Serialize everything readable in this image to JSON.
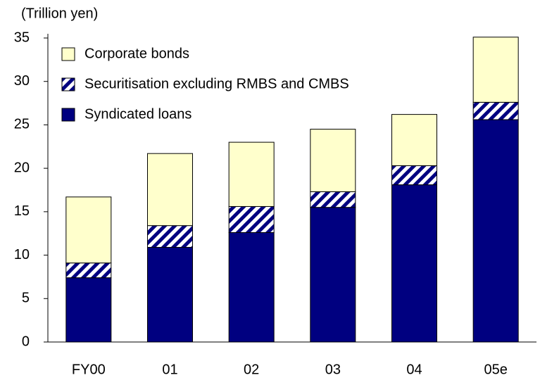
{
  "chart_data": {
    "type": "stacked_bar",
    "y_label": "(Trillion yen)",
    "categories": [
      "FY00",
      "01",
      "02",
      "03",
      "04",
      "05e"
    ],
    "series": [
      {
        "name": "Syndicated loans",
        "color": "#000080",
        "values": [
          7.4,
          10.9,
          12.6,
          15.5,
          18.1,
          25.6
        ]
      },
      {
        "name": "Securitisation excluding RMBS and CMBS",
        "color": "#000080",
        "pattern": "hatch",
        "values": [
          1.7,
          2.5,
          3.0,
          1.8,
          2.2,
          2.0
        ]
      },
      {
        "name": "Corporate bonds",
        "color": "#ffffcc",
        "values": [
          7.6,
          8.3,
          7.4,
          7.2,
          5.9,
          7.5
        ]
      }
    ],
    "ylim": [
      0,
      35
    ],
    "yticks": [
      0,
      5,
      10,
      15,
      20,
      25,
      30,
      35
    ],
    "legend": "top-left"
  }
}
